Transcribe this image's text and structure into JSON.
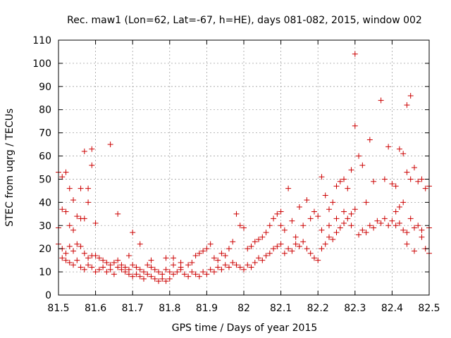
{
  "chart_data": {
    "type": "scatter",
    "title": "Rec. maw1 (Lon=62, Lat=-67, h=HE), days 081-082, 2015, window 002",
    "xlabel": "GPS time / Days of year 2015",
    "ylabel": "STEC from uqrg / TECUs",
    "xlim": [
      81.5,
      82.5
    ],
    "ylim": [
      0,
      110
    ],
    "xticks": [
      81.5,
      81.6,
      81.7,
      81.8,
      81.9,
      82,
      82.1,
      82.2,
      82.3,
      82.4,
      82.5
    ],
    "xtick_labels": [
      "81.5",
      "81.6",
      "81.7",
      "81.8",
      "81.9",
      "82",
      "82.1",
      "82.2",
      "82.3",
      "82.4",
      "82.5"
    ],
    "yticks": [
      0,
      10,
      20,
      30,
      40,
      50,
      60,
      70,
      80,
      90,
      100,
      110
    ],
    "ytick_labels": [
      "0",
      "10",
      "20",
      "30",
      "40",
      "50",
      "60",
      "70",
      "80",
      "90",
      "100",
      "110"
    ],
    "grid": true,
    "marker": "plus",
    "color": "#cc0000",
    "points": [
      [
        81.5,
        53
      ],
      [
        81.51,
        51
      ],
      [
        81.52,
        53
      ],
      [
        81.53,
        46
      ],
      [
        81.54,
        41
      ],
      [
        81.56,
        46
      ],
      [
        81.57,
        62
      ],
      [
        81.59,
        63
      ],
      [
        81.58,
        46
      ],
      [
        81.59,
        56
      ],
      [
        81.6,
        31
      ],
      [
        81.64,
        65
      ],
      [
        81.66,
        35
      ],
      [
        81.7,
        27
      ],
      [
        81.5,
        29
      ],
      [
        81.51,
        37
      ],
      [
        81.52,
        36
      ],
      [
        81.53,
        30
      ],
      [
        81.54,
        28
      ],
      [
        81.55,
        34
      ],
      [
        81.56,
        33
      ],
      [
        81.57,
        33
      ],
      [
        81.58,
        40
      ],
      [
        81.5,
        22
      ],
      [
        81.51,
        20
      ],
      [
        81.52,
        18
      ],
      [
        81.53,
        21
      ],
      [
        81.54,
        19
      ],
      [
        81.55,
        22
      ],
      [
        81.56,
        21
      ],
      [
        81.57,
        18
      ],
      [
        81.58,
        16
      ],
      [
        81.59,
        17
      ],
      [
        81.6,
        17
      ],
      [
        81.51,
        16
      ],
      [
        81.52,
        15
      ],
      [
        81.53,
        14
      ],
      [
        81.54,
        13
      ],
      [
        81.55,
        15
      ],
      [
        81.56,
        12
      ],
      [
        81.57,
        11
      ],
      [
        81.58,
        13
      ],
      [
        81.59,
        12
      ],
      [
        81.6,
        10
      ],
      [
        81.61,
        11
      ],
      [
        81.62,
        12
      ],
      [
        81.63,
        10
      ],
      [
        81.64,
        11
      ],
      [
        81.65,
        9
      ],
      [
        81.66,
        12
      ],
      [
        81.67,
        11
      ],
      [
        81.68,
        10
      ],
      [
        81.69,
        9
      ],
      [
        81.7,
        8
      ],
      [
        81.61,
        16
      ],
      [
        81.62,
        15
      ],
      [
        81.63,
        14
      ],
      [
        81.64,
        13
      ],
      [
        81.65,
        14
      ],
      [
        81.66,
        15
      ],
      [
        81.67,
        13
      ],
      [
        81.68,
        12
      ],
      [
        81.69,
        11
      ],
      [
        81.7,
        13
      ],
      [
        81.71,
        9
      ],
      [
        81.72,
        8
      ],
      [
        81.73,
        7
      ],
      [
        81.74,
        9
      ],
      [
        81.75,
        8
      ],
      [
        81.76,
        7
      ],
      [
        81.77,
        6
      ],
      [
        81.78,
        7
      ],
      [
        81.79,
        6
      ],
      [
        81.8,
        7
      ],
      [
        81.71,
        12
      ],
      [
        81.72,
        11
      ],
      [
        81.73,
        10
      ],
      [
        81.74,
        13
      ],
      [
        81.75,
        12
      ],
      [
        81.76,
        11
      ],
      [
        81.77,
        10
      ],
      [
        81.78,
        9
      ],
      [
        81.79,
        11
      ],
      [
        81.8,
        10
      ],
      [
        81.69,
        17
      ],
      [
        81.72,
        22
      ],
      [
        81.75,
        15
      ],
      [
        81.79,
        16
      ],
      [
        81.81,
        16
      ],
      [
        81.83,
        14
      ],
      [
        81.81,
        9
      ],
      [
        81.82,
        10
      ],
      [
        81.83,
        11
      ],
      [
        81.84,
        9
      ],
      [
        81.85,
        8
      ],
      [
        81.86,
        10
      ],
      [
        81.87,
        9
      ],
      [
        81.88,
        8
      ],
      [
        81.89,
        10
      ],
      [
        81.9,
        9
      ],
      [
        81.81,
        13
      ],
      [
        81.83,
        12
      ],
      [
        81.85,
        13
      ],
      [
        81.86,
        14
      ],
      [
        81.87,
        17
      ],
      [
        81.88,
        18
      ],
      [
        81.89,
        19
      ],
      [
        81.9,
        20
      ],
      [
        81.91,
        22
      ],
      [
        81.91,
        11
      ],
      [
        81.92,
        10
      ],
      [
        81.93,
        12
      ],
      [
        81.94,
        11
      ],
      [
        81.95,
        13
      ],
      [
        81.96,
        12
      ],
      [
        81.97,
        14
      ],
      [
        81.98,
        13
      ],
      [
        81.99,
        12
      ],
      [
        82.0,
        11
      ],
      [
        81.92,
        16
      ],
      [
        81.93,
        15
      ],
      [
        81.94,
        18
      ],
      [
        81.95,
        17
      ],
      [
        81.96,
        20
      ],
      [
        81.97,
        23
      ],
      [
        81.98,
        35
      ],
      [
        81.99,
        30
      ],
      [
        82.0,
        29
      ],
      [
        82.01,
        13
      ],
      [
        82.02,
        12
      ],
      [
        82.03,
        14
      ],
      [
        82.04,
        16
      ],
      [
        82.05,
        15
      ],
      [
        82.06,
        17
      ],
      [
        82.07,
        18
      ],
      [
        82.08,
        20
      ],
      [
        82.09,
        21
      ],
      [
        82.1,
        22
      ],
      [
        82.01,
        20
      ],
      [
        82.02,
        21
      ],
      [
        82.03,
        23
      ],
      [
        82.04,
        24
      ],
      [
        82.05,
        25
      ],
      [
        82.06,
        27
      ],
      [
        82.07,
        30
      ],
      [
        82.08,
        33
      ],
      [
        82.09,
        35
      ],
      [
        82.1,
        36
      ],
      [
        82.1,
        30
      ],
      [
        82.11,
        28
      ],
      [
        82.12,
        46
      ],
      [
        82.13,
        32
      ],
      [
        82.14,
        25
      ],
      [
        82.15,
        38
      ],
      [
        82.16,
        30
      ],
      [
        82.17,
        41
      ],
      [
        82.18,
        33
      ],
      [
        82.19,
        36
      ],
      [
        82.2,
        34
      ],
      [
        82.11,
        18
      ],
      [
        82.12,
        20
      ],
      [
        82.13,
        19
      ],
      [
        82.14,
        22
      ],
      [
        82.15,
        21
      ],
      [
        82.16,
        23
      ],
      [
        82.17,
        20
      ],
      [
        82.18,
        18
      ],
      [
        82.19,
        16
      ],
      [
        82.2,
        15
      ],
      [
        82.21,
        51
      ],
      [
        82.22,
        43
      ],
      [
        82.23,
        37
      ],
      [
        82.24,
        40
      ],
      [
        82.25,
        47
      ],
      [
        82.26,
        49
      ],
      [
        82.27,
        50
      ],
      [
        82.28,
        46
      ],
      [
        82.29,
        54
      ],
      [
        82.3,
        73
      ],
      [
        82.21,
        20
      ],
      [
        82.22,
        22
      ],
      [
        82.23,
        25
      ],
      [
        82.24,
        24
      ],
      [
        82.25,
        27
      ],
      [
        82.26,
        29
      ],
      [
        82.27,
        31
      ],
      [
        82.28,
        33
      ],
      [
        82.29,
        35
      ],
      [
        82.3,
        37
      ],
      [
        82.21,
        28
      ],
      [
        82.23,
        30
      ],
      [
        82.25,
        33
      ],
      [
        82.27,
        36
      ],
      [
        82.29,
        30
      ],
      [
        82.3,
        104
      ],
      [
        82.31,
        60
      ],
      [
        82.32,
        56
      ],
      [
        82.33,
        40
      ],
      [
        82.34,
        67
      ],
      [
        82.31,
        26
      ],
      [
        82.32,
        28
      ],
      [
        82.33,
        27
      ],
      [
        82.34,
        30
      ],
      [
        82.35,
        29
      ],
      [
        82.36,
        32
      ],
      [
        82.37,
        31
      ],
      [
        82.38,
        33
      ],
      [
        82.39,
        30
      ],
      [
        82.4,
        32
      ],
      [
        82.35,
        49
      ],
      [
        82.37,
        84
      ],
      [
        82.38,
        50
      ],
      [
        82.39,
        64
      ],
      [
        82.4,
        48
      ],
      [
        82.41,
        47
      ],
      [
        82.42,
        63
      ],
      [
        82.43,
        61
      ],
      [
        82.44,
        82
      ],
      [
        82.45,
        86
      ],
      [
        82.41,
        36
      ],
      [
        82.42,
        38
      ],
      [
        82.43,
        40
      ],
      [
        82.44,
        53
      ],
      [
        82.45,
        50
      ],
      [
        82.46,
        55
      ],
      [
        82.47,
        49
      ],
      [
        82.48,
        50
      ],
      [
        82.49,
        46
      ],
      [
        82.5,
        47
      ],
      [
        82.41,
        30
      ],
      [
        82.42,
        31
      ],
      [
        82.43,
        28
      ],
      [
        82.44,
        27
      ],
      [
        82.45,
        33
      ],
      [
        82.46,
        29
      ],
      [
        82.47,
        30
      ],
      [
        82.48,
        25
      ],
      [
        82.49,
        20
      ],
      [
        82.5,
        18
      ],
      [
        82.44,
        22
      ],
      [
        82.46,
        19
      ],
      [
        82.48,
        28
      ],
      [
        82.5,
        29
      ]
    ]
  }
}
